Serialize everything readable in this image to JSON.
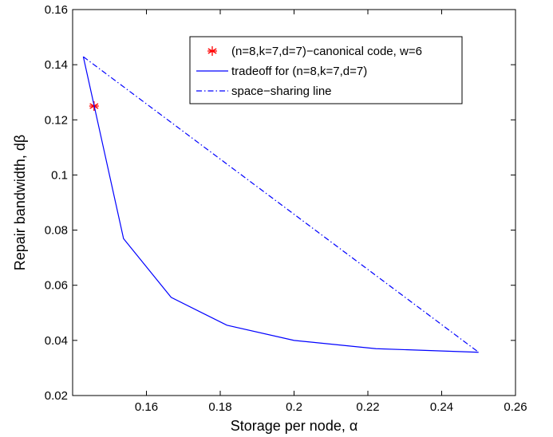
{
  "chart_data": {
    "type": "line",
    "xlabel": "Storage per node, α",
    "ylabel": "Repair bandwidth, dβ",
    "xlim": [
      0.14,
      0.26
    ],
    "ylim": [
      0.02,
      0.16
    ],
    "x_ticks": [
      0.16,
      0.18,
      0.2,
      0.22,
      0.24,
      0.26
    ],
    "x_tick_labels": [
      "0.16",
      "0.18",
      "0.2",
      "0.22",
      "0.24",
      "0.26"
    ],
    "y_ticks": [
      0.02,
      0.04,
      0.06,
      0.08,
      0.1,
      0.12,
      0.14,
      0.16
    ],
    "y_tick_labels": [
      "0.02",
      "0.04",
      "0.06",
      "0.08",
      "0.1",
      "0.12",
      "0.14",
      "0.16"
    ],
    "grid": false,
    "legend_position": "top-right",
    "series": [
      {
        "name": "(n=8,k=7,d=7)−canonical code, w=6",
        "style": "marker",
        "marker": "asterisk",
        "color": "#ff0000",
        "points": [
          [
            0.1458,
            0.125
          ]
        ]
      },
      {
        "name": "tradeoff for (n=8,k=7,d=7)",
        "style": "solid",
        "color": "#0000ff",
        "points": [
          [
            0.1429,
            0.1429
          ],
          [
            0.1538,
            0.0769
          ],
          [
            0.1667,
            0.0556
          ],
          [
            0.1818,
            0.0455
          ],
          [
            0.2,
            0.04
          ],
          [
            0.2222,
            0.037
          ],
          [
            0.25,
            0.0357
          ]
        ]
      },
      {
        "name": "space−sharing line",
        "style": "dashdot",
        "color": "#0000ff",
        "points": [
          [
            0.1429,
            0.1429
          ],
          [
            0.25,
            0.0357
          ]
        ]
      }
    ]
  }
}
